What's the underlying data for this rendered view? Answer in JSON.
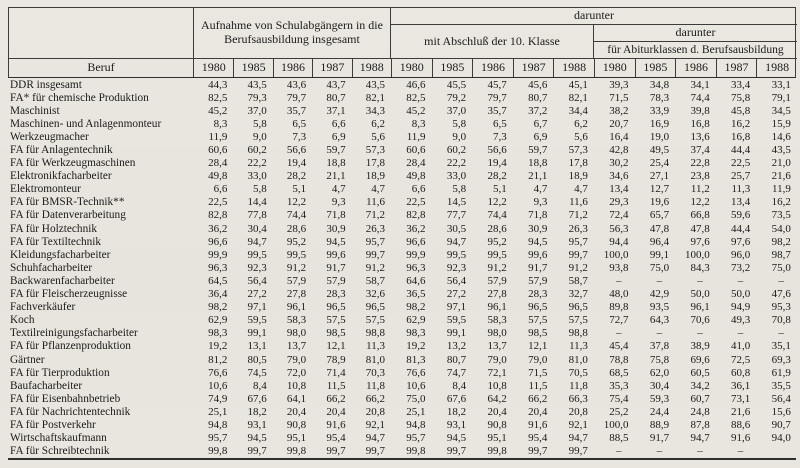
{
  "table": {
    "beruf_header": "Beruf",
    "group1_title": "Aufnahme von Schulabgängern in die Berufsausbildung insgesamt",
    "darunter1": "darunter",
    "group2_title": "mit Abschluß der 10. Klasse",
    "darunter2": "darunter",
    "group3_title": "für Abiturklassen d. Berufsausbildung",
    "years": [
      "1980",
      "1985",
      "1986",
      "1987",
      "1988"
    ],
    "rows": [
      {
        "label": "DDR insgesamt",
        "values": [
          "44,3",
          "43,5",
          "43,6",
          "43,7",
          "43,5",
          "46,6",
          "45,5",
          "45,7",
          "45,6",
          "45,1",
          "39,3",
          "34,8",
          "34,1",
          "33,4",
          "33,1"
        ]
      },
      {
        "label": "FA* für chemische Produktion",
        "values": [
          "82,5",
          "79,3",
          "79,7",
          "80,7",
          "82,1",
          "82,5",
          "79,2",
          "79,7",
          "80,7",
          "82,1",
          "71,5",
          "78,3",
          "74,4",
          "75,8",
          "79,1"
        ]
      },
      {
        "label": "Maschinist",
        "values": [
          "45,2",
          "37,0",
          "35,7",
          "37,1",
          "34,3",
          "45,2",
          "37,0",
          "35,7",
          "37,2",
          "34,4",
          "38,2",
          "33,9",
          "39,8",
          "45,8",
          "34,5"
        ]
      },
      {
        "label": "Maschinen- und Anlagenmonteur",
        "values": [
          "8,3",
          "5,8",
          "6,5",
          "6,6",
          "6,2",
          "8,3",
          "5,8",
          "6,5",
          "6,7",
          "6,2",
          "20,7",
          "16,9",
          "16,8",
          "16,2",
          "15,9"
        ]
      },
      {
        "label": "Werkzeugmacher",
        "values": [
          "11,9",
          "9,0",
          "7,3",
          "6,9",
          "5,6",
          "11,9",
          "9,0",
          "7,3",
          "6,9",
          "5,6",
          "16,4",
          "19,0",
          "13,6",
          "16,8",
          "14,6"
        ]
      },
      {
        "label": "FA für Anlagentechnik",
        "values": [
          "60,6",
          "60,2",
          "56,6",
          "59,7",
          "57,3",
          "60,6",
          "60,2",
          "56,6",
          "59,7",
          "57,3",
          "42,8",
          "49,5",
          "37,4",
          "44,4",
          "43,5"
        ]
      },
      {
        "label": "FA für Werkzeugmaschinen",
        "values": [
          "28,4",
          "22,2",
          "19,4",
          "18,8",
          "17,8",
          "28,4",
          "22,2",
          "19,4",
          "18,8",
          "17,8",
          "30,2",
          "25,4",
          "22,8",
          "22,5",
          "21,0"
        ]
      },
      {
        "label": "Elektronikfacharbeiter",
        "values": [
          "49,8",
          "33,0",
          "28,2",
          "21,1",
          "18,9",
          "49,8",
          "33,0",
          "28,2",
          "21,1",
          "18,9",
          "34,6",
          "27,1",
          "23,8",
          "25,7",
          "21,6"
        ]
      },
      {
        "label": "Elektromonteur",
        "values": [
          "6,6",
          "5,8",
          "5,1",
          "4,7",
          "4,7",
          "6,6",
          "5,8",
          "5,1",
          "4,7",
          "4,7",
          "13,4",
          "12,7",
          "11,2",
          "11,3",
          "11,9"
        ]
      },
      {
        "label": "FA für BMSR-Technik**",
        "values": [
          "22,5",
          "14,4",
          "12,2",
          "9,3",
          "11,6",
          "22,5",
          "14,5",
          "12,2",
          "9,3",
          "11,6",
          "29,3",
          "19,6",
          "12,2",
          "13,4",
          "16,2"
        ]
      },
      {
        "label": "FA für Datenverarbeitung",
        "values": [
          "82,8",
          "77,8",
          "74,4",
          "71,8",
          "71,2",
          "82,8",
          "77,7",
          "74,4",
          "71,8",
          "71,2",
          "72,4",
          "65,7",
          "66,8",
          "59,6",
          "73,5"
        ]
      },
      {
        "label": "FA für Holztechnik",
        "values": [
          "36,2",
          "30,4",
          "28,6",
          "30,9",
          "26,3",
          "36,2",
          "30,5",
          "28,6",
          "30,9",
          "26,3",
          "56,3",
          "47,8",
          "47,8",
          "44,4",
          "54,0"
        ]
      },
      {
        "label": "FA für Textiltechnik",
        "values": [
          "96,6",
          "94,7",
          "95,2",
          "94,5",
          "95,7",
          "96,6",
          "94,7",
          "95,2",
          "94,5",
          "95,7",
          "94,4",
          "96,4",
          "97,6",
          "97,6",
          "98,2"
        ]
      },
      {
        "label": "Kleidungsfacharbeiter",
        "values": [
          "99,9",
          "99,5",
          "99,5",
          "99,6",
          "99,7",
          "99,9",
          "99,5",
          "99,5",
          "99,6",
          "99,7",
          "100,0",
          "99,1",
          "100,0",
          "96,0",
          "98,7"
        ]
      },
      {
        "label": "Schuhfacharbeiter",
        "values": [
          "96,3",
          "92,3",
          "91,2",
          "91,7",
          "91,2",
          "96,3",
          "92,3",
          "91,2",
          "91,7",
          "91,2",
          "93,8",
          "75,0",
          "84,3",
          "73,2",
          "75,0"
        ]
      },
      {
        "label": "Backwarenfacharbeiter",
        "values": [
          "64,5",
          "56,4",
          "57,9",
          "57,9",
          "58,7",
          "64,6",
          "56,4",
          "57,9",
          "57,9",
          "58,7",
          "–",
          "–",
          "–",
          "–",
          "–"
        ]
      },
      {
        "label": "FA für Fleischerzeugnisse",
        "values": [
          "36,4",
          "27,2",
          "27,8",
          "28,3",
          "32,6",
          "36,5",
          "27,2",
          "27,8",
          "28,3",
          "32,7",
          "48,0",
          "42,9",
          "50,0",
          "50,0",
          "47,6"
        ]
      },
      {
        "label": "Fachverkäufer",
        "values": [
          "98,2",
          "97,1",
          "96,1",
          "96,5",
          "96,5",
          "98,2",
          "97,1",
          "96,1",
          "96,5",
          "96,5",
          "89,8",
          "93,5",
          "96,1",
          "94,9",
          "95,3"
        ]
      },
      {
        "label": "Koch",
        "values": [
          "62,9",
          "59,5",
          "58,3",
          "57,5",
          "57,5",
          "62,9",
          "59,5",
          "58,3",
          "57,5",
          "57,5",
          "72,7",
          "64,3",
          "70,6",
          "49,3",
          "70,8"
        ]
      },
      {
        "label": "Textilreinigungsfacharbeiter",
        "values": [
          "98,3",
          "99,1",
          "98,0",
          "98,5",
          "98,8",
          "98,3",
          "99,1",
          "98,0",
          "98,5",
          "98,8",
          "–",
          "–",
          "–",
          "–",
          "–"
        ]
      },
      {
        "label": "FA für Pflanzenproduktion",
        "values": [
          "19,2",
          "13,1",
          "13,7",
          "12,1",
          "11,3",
          "19,2",
          "13,2",
          "13,7",
          "12,1",
          "11,3",
          "45,4",
          "37,8",
          "38,9",
          "41,0",
          "35,1"
        ]
      },
      {
        "label": "Gärtner",
        "values": [
          "81,2",
          "80,5",
          "79,0",
          "78,9",
          "81,0",
          "81,3",
          "80,7",
          "79,0",
          "79,0",
          "81,0",
          "78,8",
          "75,8",
          "69,6",
          "72,5",
          "69,3"
        ]
      },
      {
        "label": "FA für Tierproduktion",
        "values": [
          "76,6",
          "74,5",
          "72,0",
          "71,4",
          "70,3",
          "76,6",
          "74,7",
          "72,1",
          "71,5",
          "70,5",
          "68,5",
          "62,0",
          "60,5",
          "60,8",
          "61,9"
        ]
      },
      {
        "label": "Baufacharbeiter",
        "values": [
          "10,6",
          "8,4",
          "10,8",
          "11,5",
          "11,8",
          "10,6",
          "8,4",
          "10,8",
          "11,5",
          "11,8",
          "35,3",
          "30,4",
          "34,2",
          "36,1",
          "35,5"
        ]
      },
      {
        "label": "FA für Eisenbahnbetrieb",
        "values": [
          "74,9",
          "67,6",
          "64,1",
          "66,2",
          "66,2",
          "75,0",
          "67,6",
          "64,2",
          "66,2",
          "66,3",
          "75,4",
          "59,3",
          "60,7",
          "73,1",
          "56,4"
        ]
      },
      {
        "label": "FA für Nachrichtentechnik",
        "values": [
          "25,1",
          "18,2",
          "20,4",
          "20,4",
          "20,8",
          "25,1",
          "18,2",
          "20,4",
          "20,4",
          "20,8",
          "25,2",
          "24,4",
          "24,8",
          "21,6",
          "15,6"
        ]
      },
      {
        "label": "FA für Postverkehr",
        "values": [
          "94,8",
          "93,1",
          "90,8",
          "91,6",
          "92,1",
          "94,8",
          "93,1",
          "90,8",
          "91,6",
          "92,1",
          "100,0",
          "88,9",
          "87,8",
          "88,6",
          "90,7"
        ]
      },
      {
        "label": "Wirtschaftskaufmann",
        "values": [
          "95,7",
          "94,5",
          "95,1",
          "95,4",
          "94,7",
          "95,7",
          "94,5",
          "95,1",
          "95,4",
          "94,7",
          "88,5",
          "91,7",
          "94,7",
          "91,6",
          "94,0"
        ]
      },
      {
        "label": "FA für Schreibtechnik",
        "values": [
          "99,8",
          "99,7",
          "99,8",
          "99,7",
          "99,7",
          "99,8",
          "99,7",
          "99,8",
          "99,7",
          "99,7",
          "–",
          "–",
          "–",
          "–",
          ""
        ]
      }
    ]
  }
}
